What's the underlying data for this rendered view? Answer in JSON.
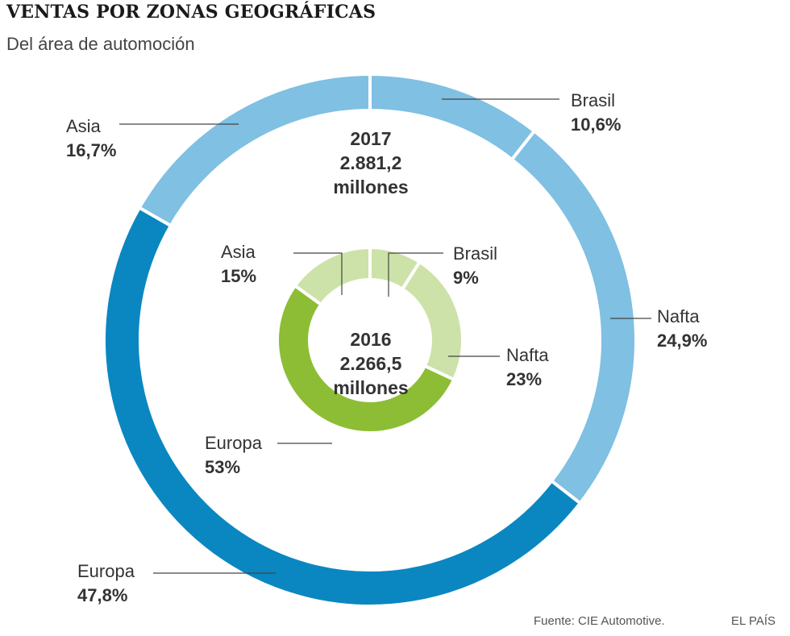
{
  "title": "VENTAS POR ZONAS GEOGRÁFICAS",
  "subtitle": "Del área de automoción",
  "source": "Fuente: CIE Automotive.",
  "brand": "EL PAÍS",
  "chart_data": [
    {
      "type": "donut",
      "year": "2017",
      "total_value": "2.881,2",
      "total_unit": "millones",
      "categories": [
        "Brasil",
        "Nafta",
        "Europa",
        "Asia"
      ],
      "values": [
        10.6,
        24.9,
        47.8,
        16.7
      ],
      "value_labels": [
        "10,6%",
        "24,9%",
        "47,8%",
        "16,7%"
      ],
      "colors": [
        "#7fc0e3",
        "#7fc0e3",
        "#0a87c1",
        "#7fc0e3"
      ]
    },
    {
      "type": "donut",
      "year": "2016",
      "total_value": "2.266,5",
      "total_unit": "millones",
      "categories": [
        "Brasil",
        "Nafta",
        "Europa",
        "Asia"
      ],
      "values": [
        9,
        23,
        53,
        15
      ],
      "value_labels": [
        "9%",
        "23%",
        "53%",
        "15%"
      ],
      "colors": [
        "#cde2a8",
        "#cde2a8",
        "#8dbd34",
        "#cde2a8"
      ]
    }
  ]
}
